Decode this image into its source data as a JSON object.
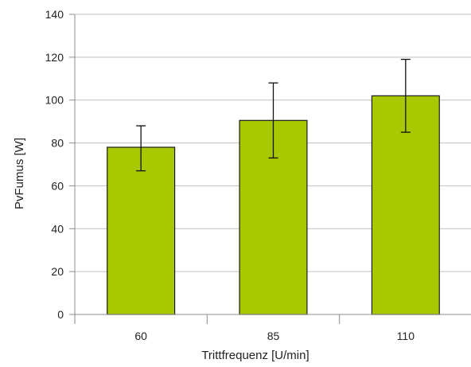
{
  "chart_data": {
    "type": "bar",
    "title": "",
    "xlabel": "Trittfrequenz [U/min]",
    "ylabel": "PvFumus [W]",
    "categories": [
      "60",
      "85",
      "110"
    ],
    "values": [
      78,
      90.5,
      102
    ],
    "error_bars": {
      "lower": [
        67,
        73,
        85
      ],
      "upper": [
        88,
        108,
        119
      ]
    },
    "ylim": [
      0,
      140
    ],
    "yticks": [
      "0",
      "20",
      "40",
      "60",
      "80",
      "100",
      "120",
      "140"
    ],
    "grid": true,
    "legend": "none",
    "colors": {
      "bar_fill": "#a8c800",
      "bar_stroke": "#1a1a1a",
      "grid": "#bfbfbf",
      "axis": "#8c8c8c"
    }
  }
}
